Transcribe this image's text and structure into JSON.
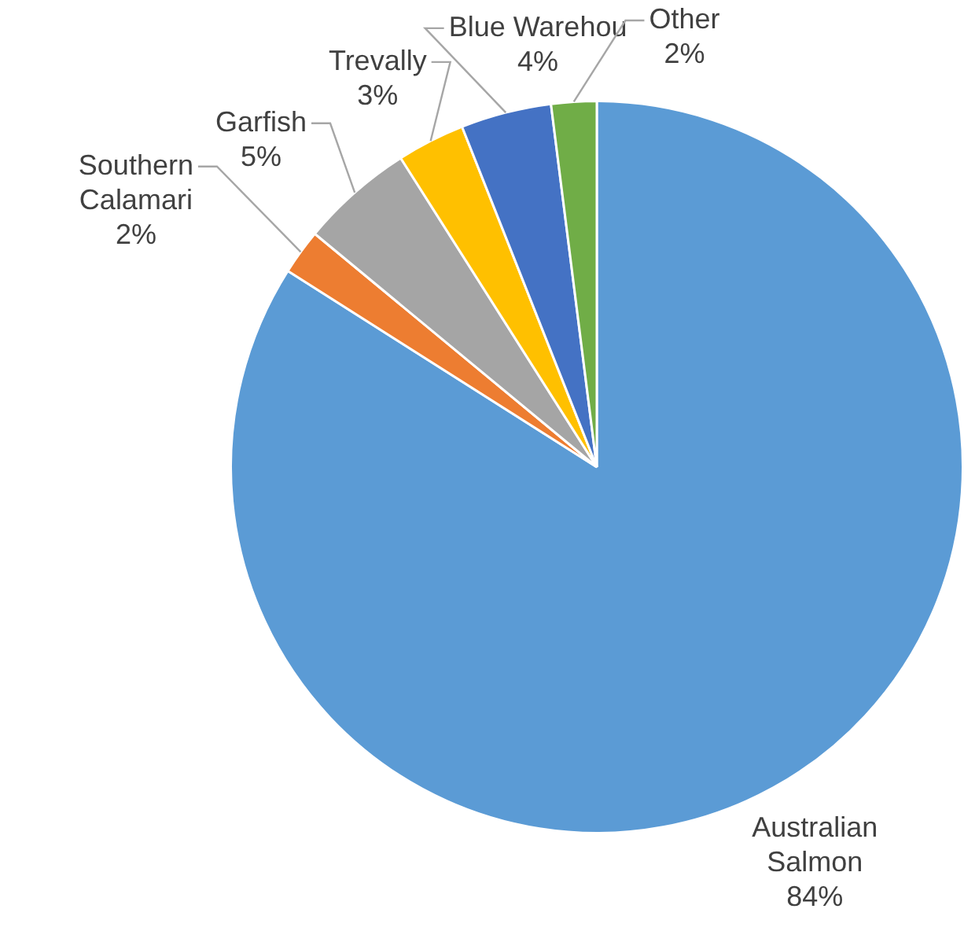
{
  "chart_data": {
    "type": "pie",
    "categories": [
      "Australian Salmon",
      "Southern Calamari",
      "Garfish",
      "Trevally",
      "Blue Warehou",
      "Other"
    ],
    "values": [
      84,
      2,
      5,
      3,
      4,
      2
    ],
    "colors": [
      "#5b9bd5",
      "#ed7d31",
      "#a5a5a5",
      "#ffc000",
      "#4472c4",
      "#70ad47"
    ],
    "value_labels": [
      "84%",
      "2%",
      "5%",
      "3%",
      "4%",
      "2%"
    ],
    "legend": false
  }
}
